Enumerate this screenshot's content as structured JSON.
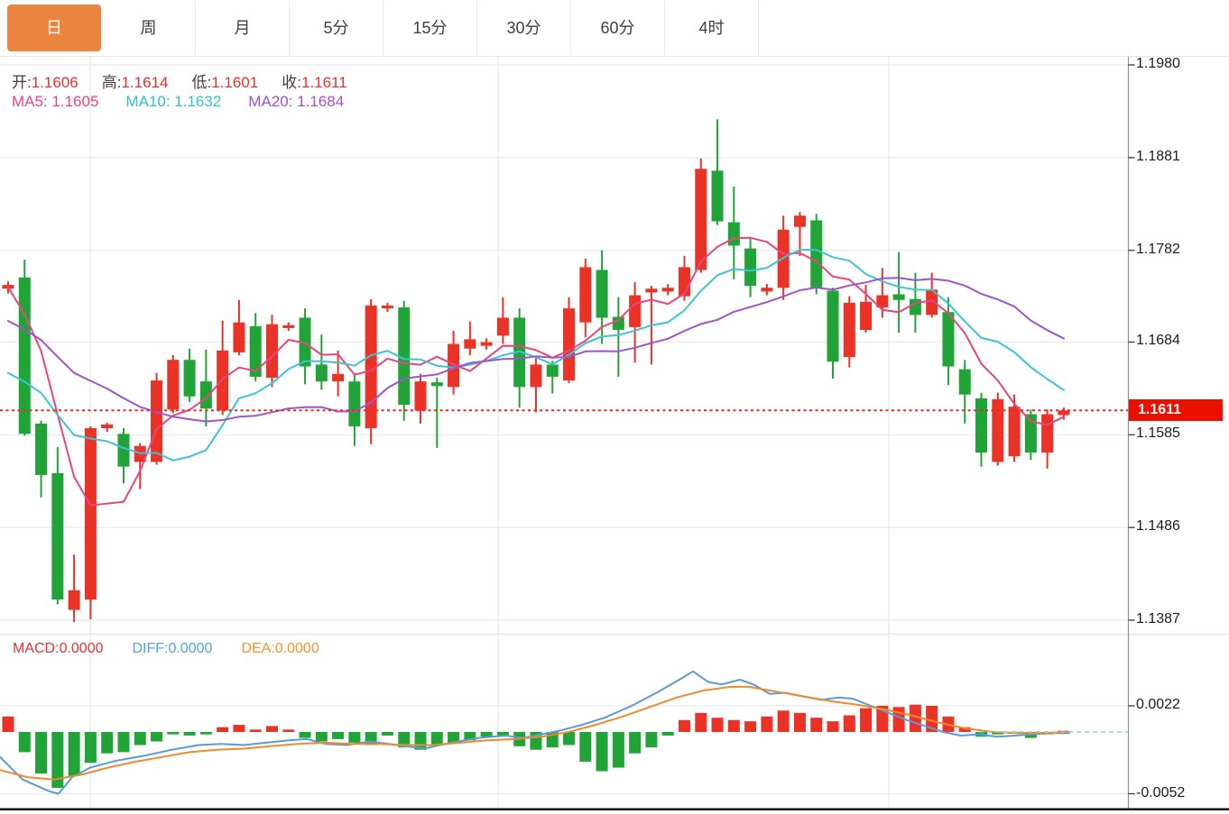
{
  "header": {
    "tabs": [
      {
        "label": "日",
        "active": true
      },
      {
        "label": "周",
        "active": false
      },
      {
        "label": "月",
        "active": false
      },
      {
        "label": "5分",
        "active": false
      },
      {
        "label": "15分",
        "active": false
      },
      {
        "label": "30分",
        "active": false
      },
      {
        "label": "60分",
        "active": false
      },
      {
        "label": "4时",
        "active": false
      }
    ]
  },
  "overlay": {
    "open_label": "开:",
    "open": "1.1606",
    "high_label": "高:",
    "high": "1.1614",
    "low_label": "低:",
    "low": "1.1601",
    "close_label": "收:",
    "close": "1.1611",
    "ma5_label": "MA5:",
    "ma5": "1.1605",
    "ma10_label": "MA10:",
    "ma10": "1.1632",
    "ma20_label": "MA20:",
    "ma20": "1.1684"
  },
  "macd_overlay": {
    "macd_label": "MACD:",
    "macd": "0.0000",
    "diff_label": "DIFF:",
    "diff": "0.0000",
    "dea_label": "DEA:",
    "dea": "0.0000"
  },
  "price_tag": {
    "text": "1.1611",
    "price": 1.1611
  },
  "axis": {
    "main_ticks": [
      {
        "label": "1.1980",
        "price": 1.198
      },
      {
        "label": "1.1881",
        "price": 1.1881
      },
      {
        "label": "1.1782",
        "price": 1.1782
      },
      {
        "label": "1.1684",
        "price": 1.1684
      },
      {
        "label": "1.1585",
        "price": 1.1585
      },
      {
        "label": "1.1486",
        "price": 1.1486
      },
      {
        "label": "1.1387",
        "price": 1.1387
      }
    ],
    "macd_ticks": [
      {
        "label": "0.0022",
        "value_1e4": 22
      },
      {
        "label": "-0.0052",
        "value_1e4": -52
      }
    ]
  },
  "colors": {
    "up": "#ea3226",
    "down": "#21a437",
    "ma5": "#e8457e",
    "ma10": "#3cc3d4",
    "ma20": "#9e54cc",
    "diff_line": "#5b9bd5",
    "dea_line": "#ef8a2b",
    "dotted_price_line": "#f5211d",
    "zero_dash": "#7fd4dc",
    "grid": "#e9edf0",
    "axis_line": "#8f8f8f",
    "divider": "#dcdcdc",
    "frame_bottom": "#151515",
    "active_tab": "#ec8540",
    "tag_bg": "#ea1000"
  },
  "chart_data": [
    {
      "type": "candlestick",
      "title": "EUR daily candlestick panel (red = rise, green = fall)",
      "ylim": [
        1.1387,
        1.198
      ],
      "current_price": 1.1611,
      "candles": [
        [
          1.1741,
          1.1749,
          1.1736,
          1.1745
        ],
        [
          1.1753,
          1.1772,
          1.1584,
          1.1586
        ],
        [
          1.1597,
          1.16,
          1.1518,
          1.1542
        ],
        [
          1.1544,
          1.1572,
          1.1404,
          1.1409
        ],
        [
          1.1398,
          1.1457,
          1.1385,
          1.1419
        ],
        [
          1.1409,
          1.1594,
          1.1388,
          1.1592
        ],
        [
          1.1592,
          1.1598,
          1.1588,
          1.1596
        ],
        [
          1.1586,
          1.1592,
          1.1533,
          1.1551
        ],
        [
          1.1556,
          1.1576,
          1.1527,
          1.1573
        ],
        [
          1.1556,
          1.1651,
          1.1553,
          1.1643
        ],
        [
          1.1612,
          1.167,
          1.1608,
          1.1665
        ],
        [
          1.1665,
          1.1677,
          1.162,
          1.1626
        ],
        [
          1.1642,
          1.1676,
          1.1594,
          1.1613
        ],
        [
          1.1611,
          1.1707,
          1.1606,
          1.1675
        ],
        [
          1.1673,
          1.1729,
          1.167,
          1.1705
        ],
        [
          1.1701,
          1.1715,
          1.1642,
          1.1647
        ],
        [
          1.1646,
          1.1713,
          1.1636,
          1.1703
        ],
        [
          1.1699,
          1.1705,
          1.1696,
          1.1702
        ],
        [
          1.171,
          1.172,
          1.1639,
          1.1658
        ],
        [
          1.166,
          1.1692,
          1.1633,
          1.1642
        ],
        [
          1.1642,
          1.1675,
          1.1626,
          1.165
        ],
        [
          1.1642,
          1.1651,
          1.1573,
          1.1594
        ],
        [
          1.1592,
          1.173,
          1.1575,
          1.1723
        ],
        [
          1.172,
          1.1726,
          1.1716,
          1.1723
        ],
        [
          1.1721,
          1.1728,
          1.16,
          1.1617
        ],
        [
          1.1611,
          1.165,
          1.1597,
          1.1642
        ],
        [
          1.1641,
          1.1646,
          1.1571,
          1.1637
        ],
        [
          1.1636,
          1.1696,
          1.1628,
          1.1682
        ],
        [
          1.1677,
          1.1706,
          1.167,
          1.1687
        ],
        [
          1.168,
          1.1688,
          1.1676,
          1.1684
        ],
        [
          1.1691,
          1.1732,
          1.1682,
          1.171
        ],
        [
          1.171,
          1.172,
          1.1614,
          1.1636
        ],
        [
          1.1636,
          1.1668,
          1.1609,
          1.166
        ],
        [
          1.166,
          1.1664,
          1.1629,
          1.1647
        ],
        [
          1.1643,
          1.1732,
          1.164,
          1.172
        ],
        [
          1.1705,
          1.1773,
          1.1689,
          1.1764
        ],
        [
          1.1761,
          1.1782,
          1.1682,
          1.171
        ],
        [
          1.1711,
          1.1732,
          1.1647,
          1.1697
        ],
        [
          1.17,
          1.1748,
          1.1662,
          1.1734
        ],
        [
          1.1737,
          1.1744,
          1.166,
          1.1741
        ],
        [
          1.1738,
          1.1746,
          1.1734,
          1.1742
        ],
        [
          1.1733,
          1.1776,
          1.1728,
          1.1764
        ],
        [
          1.1761,
          1.188,
          1.1758,
          1.1869
        ],
        [
          1.1867,
          1.1922,
          1.1809,
          1.1813
        ],
        [
          1.1812,
          1.185,
          1.1751,
          1.1787
        ],
        [
          1.1784,
          1.1795,
          1.1732,
          1.1744
        ],
        [
          1.1738,
          1.1746,
          1.1734,
          1.1742
        ],
        [
          1.1742,
          1.1819,
          1.1729,
          1.1804
        ],
        [
          1.1807,
          1.1823,
          1.1776,
          1.1819
        ],
        [
          1.1814,
          1.1821,
          1.1735,
          1.1742
        ],
        [
          1.1739,
          1.1742,
          1.1645,
          1.1663
        ],
        [
          1.1668,
          1.1733,
          1.1657,
          1.1726
        ],
        [
          1.1697,
          1.1745,
          1.1694,
          1.1727
        ],
        [
          1.1721,
          1.1763,
          1.171,
          1.1734
        ],
        [
          1.1735,
          1.178,
          1.1694,
          1.1729
        ],
        [
          1.173,
          1.1758,
          1.1694,
          1.1713
        ],
        [
          1.1713,
          1.1758,
          1.171,
          1.174
        ],
        [
          1.1716,
          1.1732,
          1.1638,
          1.1658
        ],
        [
          1.1655,
          1.1665,
          1.1597,
          1.1628
        ],
        [
          1.1624,
          1.163,
          1.1551,
          1.1566
        ],
        [
          1.1556,
          1.163,
          1.1552,
          1.1623
        ],
        [
          1.1562,
          1.1628,
          1.1556,
          1.1615
        ],
        [
          1.1607,
          1.1612,
          1.1558,
          1.1566
        ],
        [
          1.1566,
          1.1612,
          1.1549,
          1.1607
        ],
        [
          1.1606,
          1.1614,
          1.1601,
          1.1611
        ]
      ],
      "ma_periods": [
        5,
        10,
        20
      ],
      "pre_closes_ma5": [
        1.173,
        1.1738,
        1.1748,
        1.1752
      ],
      "pre_closes": [
        1.177,
        1.1768,
        1.1766,
        1.1764,
        1.1762,
        1.176,
        1.1758,
        1.1757,
        1.1756,
        1.1762,
        1.168,
        1.166,
        1.1645,
        1.1635,
        1.1628,
        1.1625,
        1.1622,
        1.163,
        1.164
      ]
    },
    {
      "type": "macd",
      "title": "MACD panel",
      "ylim": [
        -0.0052,
        0.0022
      ],
      "histogram_1e4": [
        13,
        -17,
        -35,
        -47,
        -37,
        -26,
        -18,
        -17,
        -11,
        -8,
        -2,
        -3,
        -2,
        4,
        6,
        2,
        5,
        2,
        -5,
        -8,
        -6,
        -9,
        -11,
        -3,
        -13,
        -15,
        -11,
        -9,
        -7,
        -4,
        -3,
        -12,
        -15,
        -13,
        -11,
        -25,
        -33,
        -30,
        -18,
        -13,
        -3,
        10,
        16,
        12,
        10,
        9,
        13,
        18,
        16,
        12,
        9,
        14,
        20,
        22,
        21,
        23,
        22,
        13,
        4,
        -4,
        -2,
        -1,
        -5,
        -2,
        1
      ],
      "diff_points_1e4": [
        [
          0,
          -21
        ],
        [
          25,
          -40
        ],
        [
          55,
          -50
        ],
        [
          65,
          -52
        ],
        [
          80,
          -38
        ],
        [
          100,
          -30
        ],
        [
          130,
          -24
        ],
        [
          160,
          -20
        ],
        [
          190,
          -15
        ],
        [
          220,
          -11
        ],
        [
          245,
          -10
        ],
        [
          270,
          -11
        ],
        [
          295,
          -9
        ],
        [
          320,
          -7
        ],
        [
          340,
          -6
        ],
        [
          360,
          -10
        ],
        [
          385,
          -11
        ],
        [
          410,
          -8
        ],
        [
          440,
          -11
        ],
        [
          470,
          -14
        ],
        [
          500,
          -9
        ],
        [
          530,
          -5
        ],
        [
          560,
          -3
        ],
        [
          580,
          -5
        ],
        [
          600,
          -2
        ],
        [
          620,
          1
        ],
        [
          645,
          6
        ],
        [
          670,
          12
        ],
        [
          700,
          22
        ],
        [
          730,
          34
        ],
        [
          755,
          45
        ],
        [
          768,
          51
        ],
        [
          785,
          42
        ],
        [
          800,
          40
        ],
        [
          820,
          44
        ],
        [
          835,
          40
        ],
        [
          853,
          32
        ],
        [
          870,
          33
        ],
        [
          890,
          30
        ],
        [
          910,
          27
        ],
        [
          930,
          29
        ],
        [
          945,
          28
        ],
        [
          965,
          22
        ],
        [
          985,
          16
        ],
        [
          1005,
          10
        ],
        [
          1025,
          5
        ],
        [
          1045,
          0
        ],
        [
          1065,
          -3
        ],
        [
          1085,
          -2
        ],
        [
          1105,
          -4
        ],
        [
          1125,
          -3
        ],
        [
          1145,
          -2
        ],
        [
          1165,
          -1
        ],
        [
          1185,
          -1
        ]
      ],
      "dea_points_1e4": [
        [
          0,
          -32
        ],
        [
          30,
          -38
        ],
        [
          60,
          -40
        ],
        [
          90,
          -36
        ],
        [
          120,
          -30
        ],
        [
          150,
          -25
        ],
        [
          180,
          -21
        ],
        [
          210,
          -17
        ],
        [
          240,
          -15
        ],
        [
          270,
          -14
        ],
        [
          300,
          -12
        ],
        [
          330,
          -10
        ],
        [
          360,
          -9
        ],
        [
          390,
          -10
        ],
        [
          420,
          -10
        ],
        [
          450,
          -11
        ],
        [
          480,
          -11
        ],
        [
          510,
          -9
        ],
        [
          540,
          -7
        ],
        [
          570,
          -6
        ],
        [
          600,
          -4
        ],
        [
          630,
          0
        ],
        [
          660,
          6
        ],
        [
          690,
          13
        ],
        [
          720,
          21
        ],
        [
          750,
          29
        ],
        [
          780,
          35
        ],
        [
          810,
          38
        ],
        [
          830,
          38
        ],
        [
          860,
          34
        ],
        [
          890,
          30
        ],
        [
          920,
          26
        ],
        [
          950,
          23
        ],
        [
          980,
          19
        ],
        [
          1010,
          14
        ],
        [
          1040,
          8
        ],
        [
          1070,
          3
        ],
        [
          1100,
          0
        ],
        [
          1130,
          -1
        ],
        [
          1160,
          -1
        ],
        [
          1185,
          0
        ]
      ]
    }
  ]
}
